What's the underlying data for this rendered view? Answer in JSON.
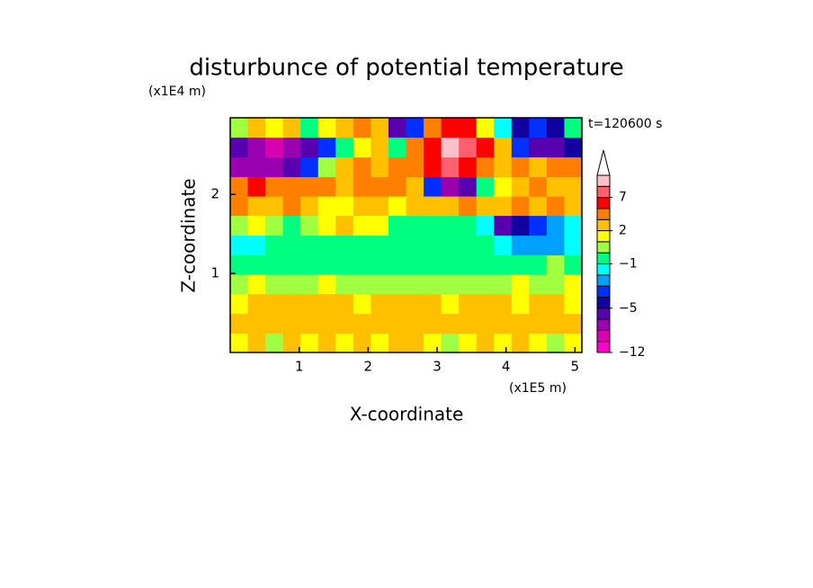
{
  "chart_data": {
    "type": "contour",
    "title": "disturbunce of potential temperature",
    "y_unit": "(x1E4 m)",
    "x_unit": "(x1E5 m)",
    "annotation": "t=120600 s",
    "xlabel": "X-coordinate",
    "ylabel": "Z-coordinate",
    "xlim": [
      0,
      5.1
    ],
    "ylim": [
      0,
      2.97
    ],
    "xticks": [
      1,
      2,
      3,
      4,
      5
    ],
    "yticks": [
      1,
      2
    ],
    "x": [
      0.13,
      0.38,
      0.64,
      0.89,
      1.15,
      1.4,
      1.66,
      1.91,
      2.17,
      2.42,
      2.68,
      2.93,
      3.19,
      3.44,
      3.7,
      3.95,
      4.21,
      4.46,
      4.72,
      4.97
    ],
    "y": [
      0.12,
      0.37,
      0.62,
      0.87,
      1.11,
      1.36,
      1.61,
      1.86,
      2.1,
      2.35,
      2.6,
      2.85
    ],
    "z": [
      [
        1,
        2,
        0.5,
        2,
        1,
        2,
        1.5,
        2,
        1,
        2,
        2,
        1,
        0.5,
        1,
        2,
        1,
        2,
        1,
        0.5,
        1.5
      ],
      [
        2,
        2.5,
        2,
        2,
        2,
        2.5,
        2,
        2,
        2,
        2,
        2.5,
        2,
        2.5,
        2,
        2,
        2.5,
        2,
        2,
        2,
        2
      ],
      [
        1.5,
        2,
        2,
        2,
        2.5,
        2,
        2,
        1.5,
        2,
        2,
        2,
        2,
        1.5,
        2,
        2,
        2,
        1.5,
        2,
        2,
        1.5
      ],
      [
        0.5,
        1,
        0.5,
        0.5,
        0.5,
        1,
        0.5,
        0.5,
        0.5,
        0.5,
        0.5,
        0.5,
        0.5,
        0.5,
        0.5,
        0.5,
        1,
        0.5,
        0.5,
        1
      ],
      [
        -0.5,
        -0.5,
        -0.5,
        -0.5,
        -0.5,
        -0.5,
        -0.5,
        -0.5,
        -0.5,
        -0.5,
        -0.5,
        -0.5,
        -0.5,
        -0.5,
        -0.5,
        -0.5,
        -0.5,
        -0.5,
        0.5,
        -0.5
      ],
      [
        -1.5,
        -1.5,
        -0.5,
        -0.5,
        -0.5,
        -0.5,
        -0.5,
        -0.5,
        -0.5,
        -0.5,
        -0.5,
        -0.5,
        -0.5,
        -0.5,
        -0.5,
        -1.5,
        -2.5,
        -2.5,
        -2.5,
        -1.5
      ],
      [
        0.5,
        1.5,
        0.5,
        -0.5,
        0.5,
        1.5,
        2.5,
        1.5,
        1,
        -0.5,
        -0.5,
        -0.5,
        -0.5,
        -0.5,
        -1.5,
        -5.5,
        -4.5,
        -3.5,
        -2.5,
        -1.5
      ],
      [
        3.5,
        2.5,
        2.5,
        3.5,
        2.5,
        1.5,
        1.5,
        2.5,
        2.5,
        1.5,
        2.5,
        2.5,
        2.5,
        3.5,
        2.5,
        2.5,
        3.5,
        2.5,
        3.5,
        2.5
      ],
      [
        4,
        5.5,
        4,
        3.5,
        4,
        3.5,
        2.5,
        3.5,
        4,
        3.5,
        2.5,
        -3.5,
        -6.5,
        -5.5,
        -0.5,
        1.5,
        2.5,
        3.5,
        2.5,
        2.5
      ],
      [
        -7,
        -8,
        -7,
        -5.5,
        -3.5,
        0.5,
        2.5,
        3.5,
        2.5,
        3.5,
        4,
        6,
        7.5,
        6,
        3.5,
        2.5,
        3.5,
        2.5,
        3.5,
        3.5
      ],
      [
        -5.5,
        -8,
        -8.5,
        -7,
        -5.5,
        -3.5,
        -1,
        1.5,
        2.5,
        -0.5,
        4,
        6,
        10,
        8,
        6,
        2.5,
        -3.5,
        -5.5,
        -5.5,
        -4.5
      ],
      [
        0.5,
        2.5,
        1.5,
        2.5,
        -0.5,
        1.5,
        2.5,
        3.5,
        2.5,
        -5.5,
        -3.5,
        4,
        6,
        5,
        1.5,
        -1.5,
        -4.5,
        -3.5,
        -4.5,
        -0.5
      ]
    ],
    "colorbar": {
      "levels": [
        -12,
        -10,
        -8,
        -6,
        -5,
        -4,
        -3,
        -2,
        -1,
        0,
        1,
        2,
        3,
        5,
        7,
        9,
        11
      ],
      "colors": [
        "#ff00c8",
        "#d800b0",
        "#9800b0",
        "#5800b0",
        "#1000a0",
        "#0030ff",
        "#00a0ff",
        "#00ffff",
        "#00ff80",
        "#a0ff40",
        "#ffff00",
        "#ffc000",
        "#ff8000",
        "#ff0000",
        "#ff6070",
        "#ffc0c8"
      ],
      "ticks": [
        {
          "value": -12,
          "label": "−12"
        },
        {
          "value": -5,
          "label": "−5"
        },
        {
          "value": -1,
          "label": "−1"
        },
        2,
        7
      ]
    }
  }
}
